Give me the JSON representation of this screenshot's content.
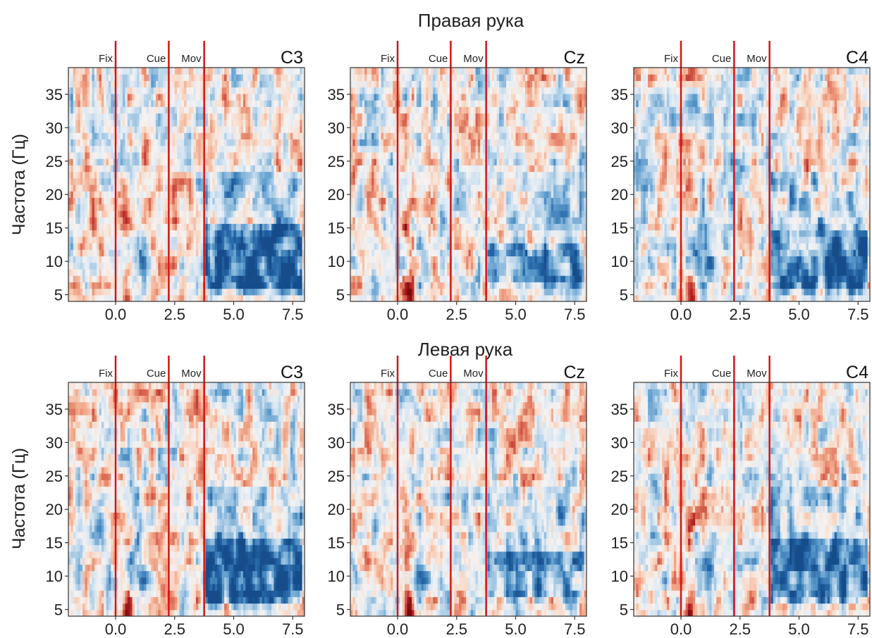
{
  "chart_data": {
    "type": "heatmap",
    "rows": [
      {
        "title": "Правая рука",
        "ylabel": "Частота (Гц)"
      },
      {
        "title": "Левая рука",
        "ylabel": "Частота (Гц)"
      }
    ],
    "channels": [
      "C3",
      "Cz",
      "C4"
    ],
    "xlim": [
      -2.0,
      8.0
    ],
    "ylim": [
      4,
      39
    ],
    "xticks": [
      0.0,
      2.5,
      5.0,
      7.5
    ],
    "xtick_labels": [
      "0.0",
      "2.5",
      "5.0",
      "7.5"
    ],
    "yticks": [
      5,
      10,
      15,
      20,
      25,
      30,
      35
    ],
    "ytick_labels": [
      "5",
      "10",
      "15",
      "20",
      "25",
      "30",
      "35"
    ],
    "events": [
      {
        "label": "Fix",
        "t": 0.0
      },
      {
        "label": "Cue",
        "t": 2.25
      },
      {
        "label": "Mov",
        "t": 3.75
      }
    ],
    "colors": {
      "positive": "#8b0a0a",
      "negative": "#1a5fa8",
      "neutral": "#f5f3f2",
      "event_line": "#d41414"
    },
    "resolution": {
      "time_bins": 100,
      "freq_bins": 36
    }
  }
}
